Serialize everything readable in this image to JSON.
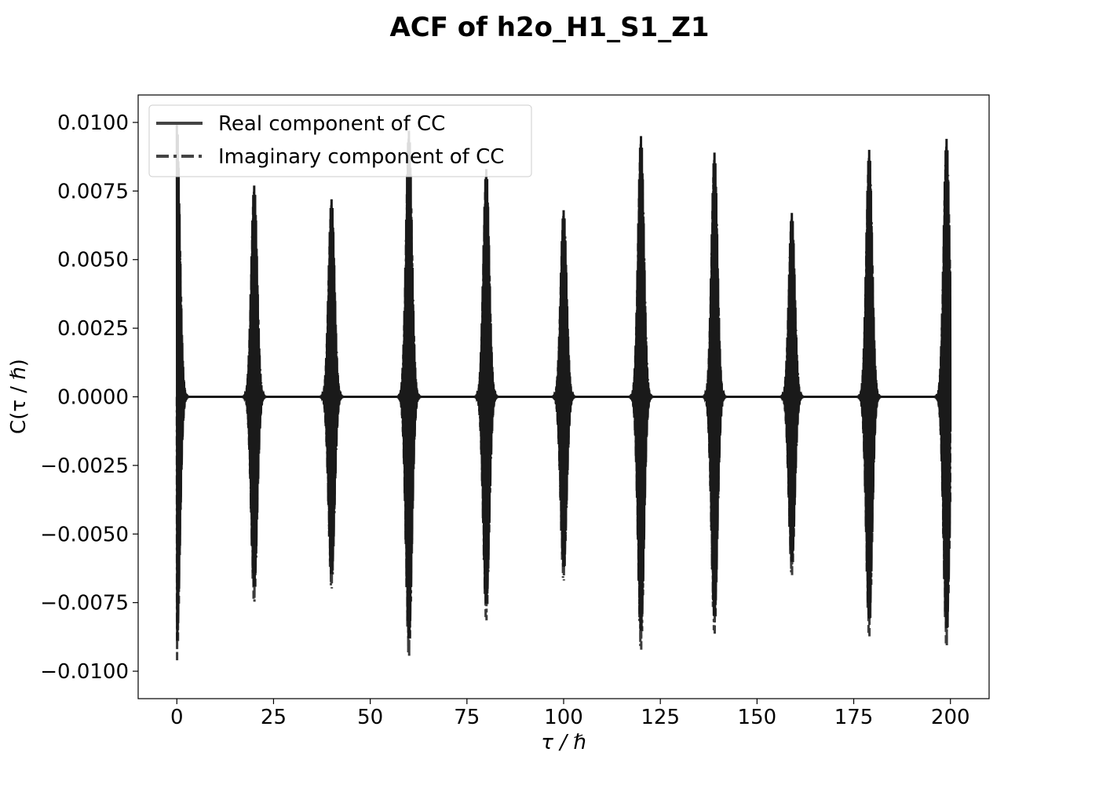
{
  "chart_data": {
    "type": "line",
    "title": "ACF of h2o_H1_S1_Z1",
    "xlabel": "τ / ℏ",
    "ylabel": "C(τ / ℏ)",
    "xlim": [
      -10,
      210
    ],
    "ylim": [
      -0.011,
      0.011
    ],
    "xticks": [
      0,
      25,
      50,
      75,
      100,
      125,
      150,
      175,
      200
    ],
    "xtick_labels": [
      "0",
      "25",
      "50",
      "75",
      "100",
      "125",
      "150",
      "175",
      "200"
    ],
    "yticks": [
      -0.01,
      -0.0075,
      -0.005,
      -0.0025,
      0.0,
      0.0025,
      0.005,
      0.0075,
      0.01
    ],
    "ytick_labels": [
      "−0.0100",
      "−0.0075",
      "−0.0050",
      "−0.0025",
      "0.0000",
      "0.0025",
      "0.0050",
      "0.0075",
      "0.0100"
    ],
    "grid": false,
    "legend_position": "top-left",
    "series": [
      {
        "name": "Real component of CC",
        "style": "solid",
        "color": "#1a1a1a"
      },
      {
        "name": "Imaginary component of CC",
        "style": "dashdot",
        "color": "#1a1a1a"
      }
    ],
    "x_range": [
      0,
      200
    ],
    "packets": [
      {
        "center": 0,
        "max": 0.01,
        "min": -0.0099
      },
      {
        "center": 20,
        "max": 0.0077,
        "min": -0.0077
      },
      {
        "center": 40,
        "max": 0.0072,
        "min": -0.0072
      },
      {
        "center": 60,
        "max": 0.0097,
        "min": -0.0098
      },
      {
        "center": 80,
        "max": 0.0083,
        "min": -0.0084
      },
      {
        "center": 100,
        "max": 0.0068,
        "min": -0.0069
      },
      {
        "center": 120,
        "max": 0.0095,
        "min": -0.0095
      },
      {
        "center": 139,
        "max": 0.0089,
        "min": -0.0089
      },
      {
        "center": 159,
        "max": 0.0067,
        "min": -0.0067
      },
      {
        "center": 179,
        "max": 0.009,
        "min": -0.009
      },
      {
        "center": 199,
        "max": 0.0094,
        "min": -0.0094
      }
    ],
    "line_color": "#1a1a1a"
  }
}
